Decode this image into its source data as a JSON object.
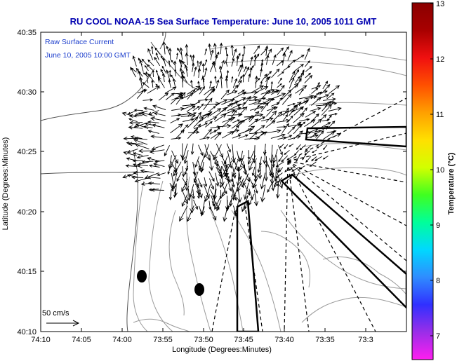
{
  "title": "RU COOL  NOAA-15  Sea Surface Temperature:  June 10, 2005 1011 GMT",
  "inset": {
    "line1": "Raw Surface Current",
    "line2": "June 10, 2005 10:00 GMT"
  },
  "scale_label": "50 cm/s",
  "x_axis": {
    "label": "Longitude (Degrees:Minutes)",
    "ticks": [
      "74:10",
      "74:05",
      "74:00",
      "73:55",
      "73:50",
      "73:45",
      "73:40",
      "73:35",
      "73:3"
    ]
  },
  "y_axis": {
    "label": "Latitude (Degrees:Minutes)",
    "ticks": [
      "40:35",
      "40:30",
      "40:25",
      "40:20",
      "40:15",
      "40:10"
    ]
  },
  "colorbar": {
    "label": "Temperature (°C)",
    "ticks": [
      "13",
      "12",
      "11",
      "10",
      "9",
      "8",
      "7"
    ],
    "range": [
      6.6,
      13
    ],
    "colors": [
      "#ff1ef0",
      "#9a2ee8",
      "#3030ff",
      "#2f8cff",
      "#00d8ff",
      "#00ff9a",
      "#40ff20",
      "#d2ff00",
      "#ffe000",
      "#ffa000",
      "#ff5000",
      "#f01010",
      "#a80000",
      "#8a0000"
    ]
  },
  "colors": {
    "title": "#0000b0",
    "inset_text": "#1a3ccc",
    "contour": "#9a9a9a",
    "vector": "#000000"
  }
}
